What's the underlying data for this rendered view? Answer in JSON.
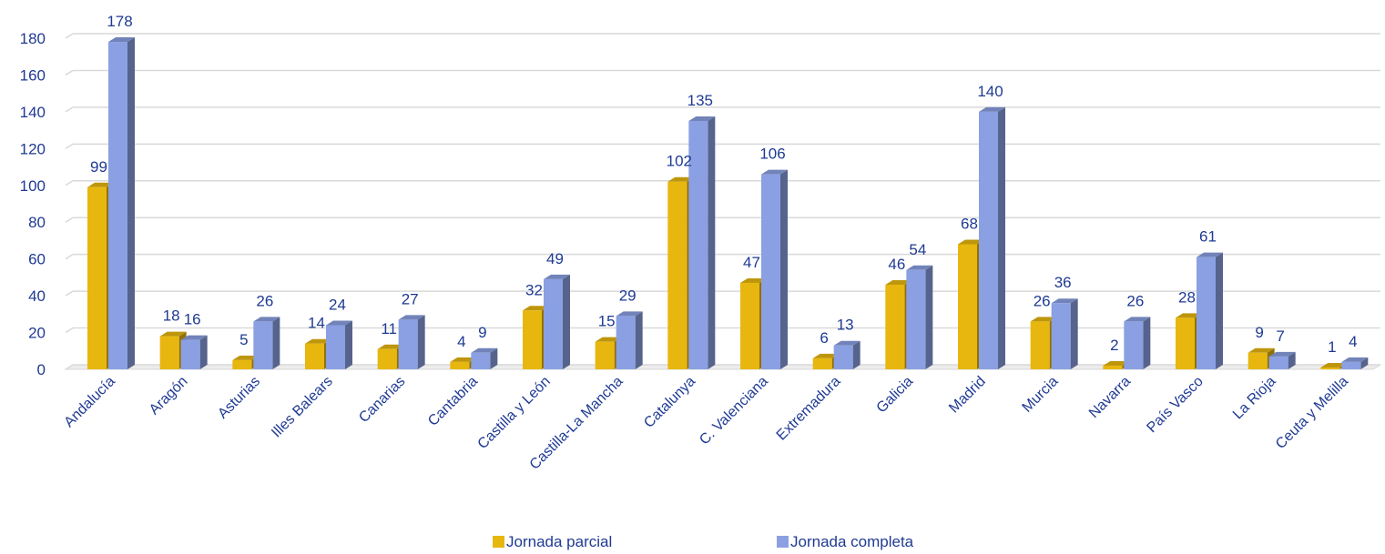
{
  "chart_data": {
    "type": "bar",
    "title": "",
    "xlabel": "",
    "ylabel": "",
    "ylim": [
      0,
      180
    ],
    "yticks": [
      0,
      20,
      40,
      60,
      80,
      100,
      120,
      140,
      160,
      180
    ],
    "grid": true,
    "legend_position": "bottom",
    "categories": [
      "Andalucía",
      "Aragón",
      "Asturias",
      "Illes Balears",
      "Canarias",
      "Cantabria",
      "Castilla y León",
      "Castilla-La Mancha",
      "Catalunya",
      "C. Valenciana",
      "Extremadura",
      "Galicia",
      "Madrid",
      "Murcia",
      "Navarra",
      "País Vasco",
      "La Rioja",
      "Ceuta  y Melilla"
    ],
    "series": [
      {
        "name": "Jornada parcial",
        "color": "#e8b70f",
        "values": [
          99,
          18,
          5,
          14,
          11,
          4,
          32,
          15,
          102,
          47,
          6,
          46,
          68,
          26,
          2,
          28,
          9,
          1
        ]
      },
      {
        "name": "Jornada completa",
        "color": "#8aa0e2",
        "values": [
          178,
          16,
          26,
          24,
          27,
          9,
          49,
          29,
          135,
          106,
          13,
          54,
          140,
          36,
          26,
          61,
          7,
          4
        ]
      }
    ]
  }
}
